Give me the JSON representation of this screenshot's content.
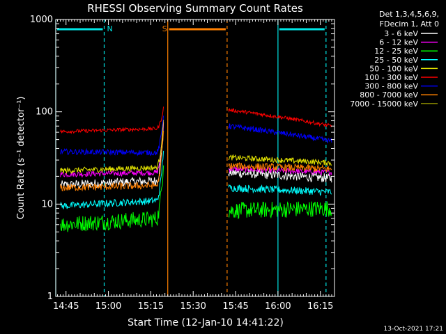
{
  "chart_data": {
    "type": "line",
    "title": "RHESSI Observing Summary Count Rates",
    "xlabel": "Start Time (12-Jan-10 14:41:22)",
    "ylabel": "Count Rate (s⁻¹ detector⁻¹)",
    "y_scale": "log",
    "ylim": [
      1,
      1000
    ],
    "xlim": [
      "14:41:22",
      "16:20:00"
    ],
    "x_ticks": [
      "14:45",
      "15:00",
      "15:15",
      "15:30",
      "15:45",
      "16:00",
      "16:15"
    ],
    "y_ticks": [
      "1",
      "10",
      "100",
      "1000"
    ],
    "legend_header": [
      "Det 1,3,4,5,6,9,",
      "FDecim 1, Att 0"
    ],
    "legend_position": "right",
    "flags": [
      {
        "label": "N",
        "color": "#00e5e5",
        "start": "14:41:22",
        "end": "14:58:30"
      },
      {
        "label": "S",
        "color": "#ff8000",
        "start": "15:21:00",
        "end": "15:42:00"
      },
      {
        "label": "",
        "color": "#00e5e5",
        "start": "16:00:00",
        "end": "16:17:00"
      }
    ],
    "night_markers": [
      {
        "color": "#00e5e5",
        "style": "solid",
        "time": "14:41:22"
      },
      {
        "color": "#00e5e5",
        "style": "dashed",
        "time": "14:58:30"
      },
      {
        "color": "#ff8000",
        "style": "solid",
        "time": "15:21:00"
      },
      {
        "color": "#ff8000",
        "style": "dashed",
        "time": "15:42:00"
      },
      {
        "color": "#00e5e5",
        "style": "solid",
        "time": "16:00:00"
      },
      {
        "color": "#00e5e5",
        "style": "dashed",
        "time": "16:17:00"
      }
    ],
    "segment1": {
      "start": "14:43:00",
      "end": "15:19:30"
    },
    "segment2": {
      "start": "15:42:30",
      "end": "16:19:00"
    },
    "series": [
      {
        "name": "3 - 6 keV",
        "color": "#ffffff",
        "seg1": [
          16,
          18
        ],
        "spike": 70,
        "seg2": [
          22,
          19
        ],
        "noise": 0.05
      },
      {
        "name": "6 - 12 keV",
        "color": "#ff00ff",
        "seg1": [
          21,
          22
        ],
        "spike": 80,
        "seg2": [
          24,
          22
        ],
        "noise": 0.03
      },
      {
        "name": "12 - 25 keV",
        "color": "#00ff00",
        "seg1": [
          6,
          7
        ],
        "spike": 30,
        "seg2": [
          8.5,
          9
        ],
        "noise": 0.09
      },
      {
        "name": "25 - 50 keV",
        "color": "#00ffff",
        "seg1": [
          9.5,
          11
        ],
        "spike": 40,
        "seg2": [
          15,
          13.5
        ],
        "noise": 0.04
      },
      {
        "name": "50 - 100 keV",
        "color": "#e5e500",
        "seg1": [
          23,
          25
        ],
        "spike": 80,
        "seg2": [
          32,
          28
        ],
        "noise": 0.03
      },
      {
        "name": "100 - 300 keV",
        "color": "#ff0000",
        "seg1": [
          61,
          66
        ],
        "spike": 110,
        "seg2": [
          105,
          70
        ],
        "noise": 0.02
      },
      {
        "name": "300 - 800 keV",
        "color": "#0000ff",
        "seg1": [
          37,
          36
        ],
        "spike": 95,
        "seg2": [
          70,
          48
        ],
        "noise": 0.03
      },
      {
        "name": "800 - 7000 keV",
        "color": "#ff8000",
        "seg1": [
          15,
          16
        ],
        "spike": 60,
        "seg2": [
          26,
          24
        ],
        "noise": 0.04
      },
      {
        "name": "7000 - 15000 keV",
        "color": "#808000",
        "seg1": [],
        "spike": null,
        "seg2": [],
        "noise": 0
      }
    ]
  },
  "footer": {
    "timestamp": "13-Oct-2021 17:21"
  }
}
